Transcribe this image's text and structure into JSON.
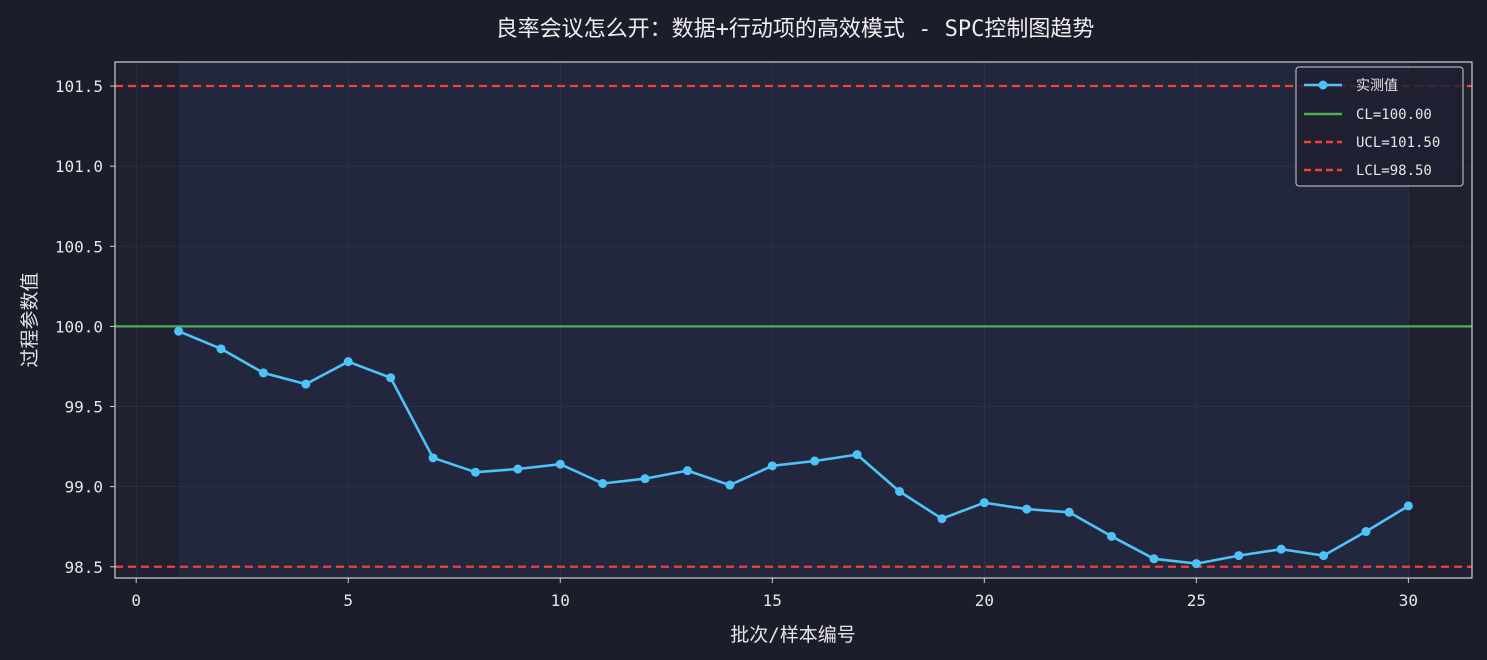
{
  "chart_data": {
    "type": "line",
    "title": "良率会议怎么开：数据+行动项的高效模式 - SPC控制图趋势",
    "xlabel": "批次/样本编号",
    "ylabel": "过程参数值",
    "xlim": [
      -0.5,
      31.5
    ],
    "ylim": [
      98.43,
      101.65
    ],
    "xticks": [
      0,
      5,
      10,
      15,
      20,
      25,
      30
    ],
    "yticks": [
      98.5,
      99.0,
      99.5,
      100.0,
      100.5,
      101.0,
      101.5
    ],
    "grid": true,
    "legend_position": "top-right",
    "series": [
      {
        "name": "实测值",
        "color": "#4fc3f7",
        "x": [
          1,
          2,
          3,
          4,
          5,
          6,
          7,
          8,
          9,
          10,
          11,
          12,
          13,
          14,
          15,
          16,
          17,
          18,
          19,
          20,
          21,
          22,
          23,
          24,
          25,
          26,
          27,
          28,
          29,
          30
        ],
        "y": [
          99.97,
          99.86,
          99.71,
          99.64,
          99.78,
          99.68,
          99.18,
          99.09,
          99.11,
          99.14,
          99.02,
          99.05,
          99.1,
          99.01,
          99.13,
          99.16,
          99.2,
          98.97,
          98.8,
          98.9,
          98.86,
          98.84,
          98.69,
          98.55,
          98.52,
          98.57,
          98.61,
          98.57,
          98.72,
          98.88
        ]
      }
    ],
    "control_lines": [
      {
        "name": "CL=100.00",
        "value": 100.0,
        "color": "#4caf50",
        "style": "solid"
      },
      {
        "name": "UCL=101.50",
        "value": 101.5,
        "color": "#f44336",
        "style": "dashed"
      },
      {
        "name": "LCL=98.50",
        "value": 98.5,
        "color": "#f44336",
        "style": "dashed"
      }
    ],
    "shaded_region": {
      "x_from": 1,
      "x_to": 30,
      "color": "#22273d"
    }
  }
}
